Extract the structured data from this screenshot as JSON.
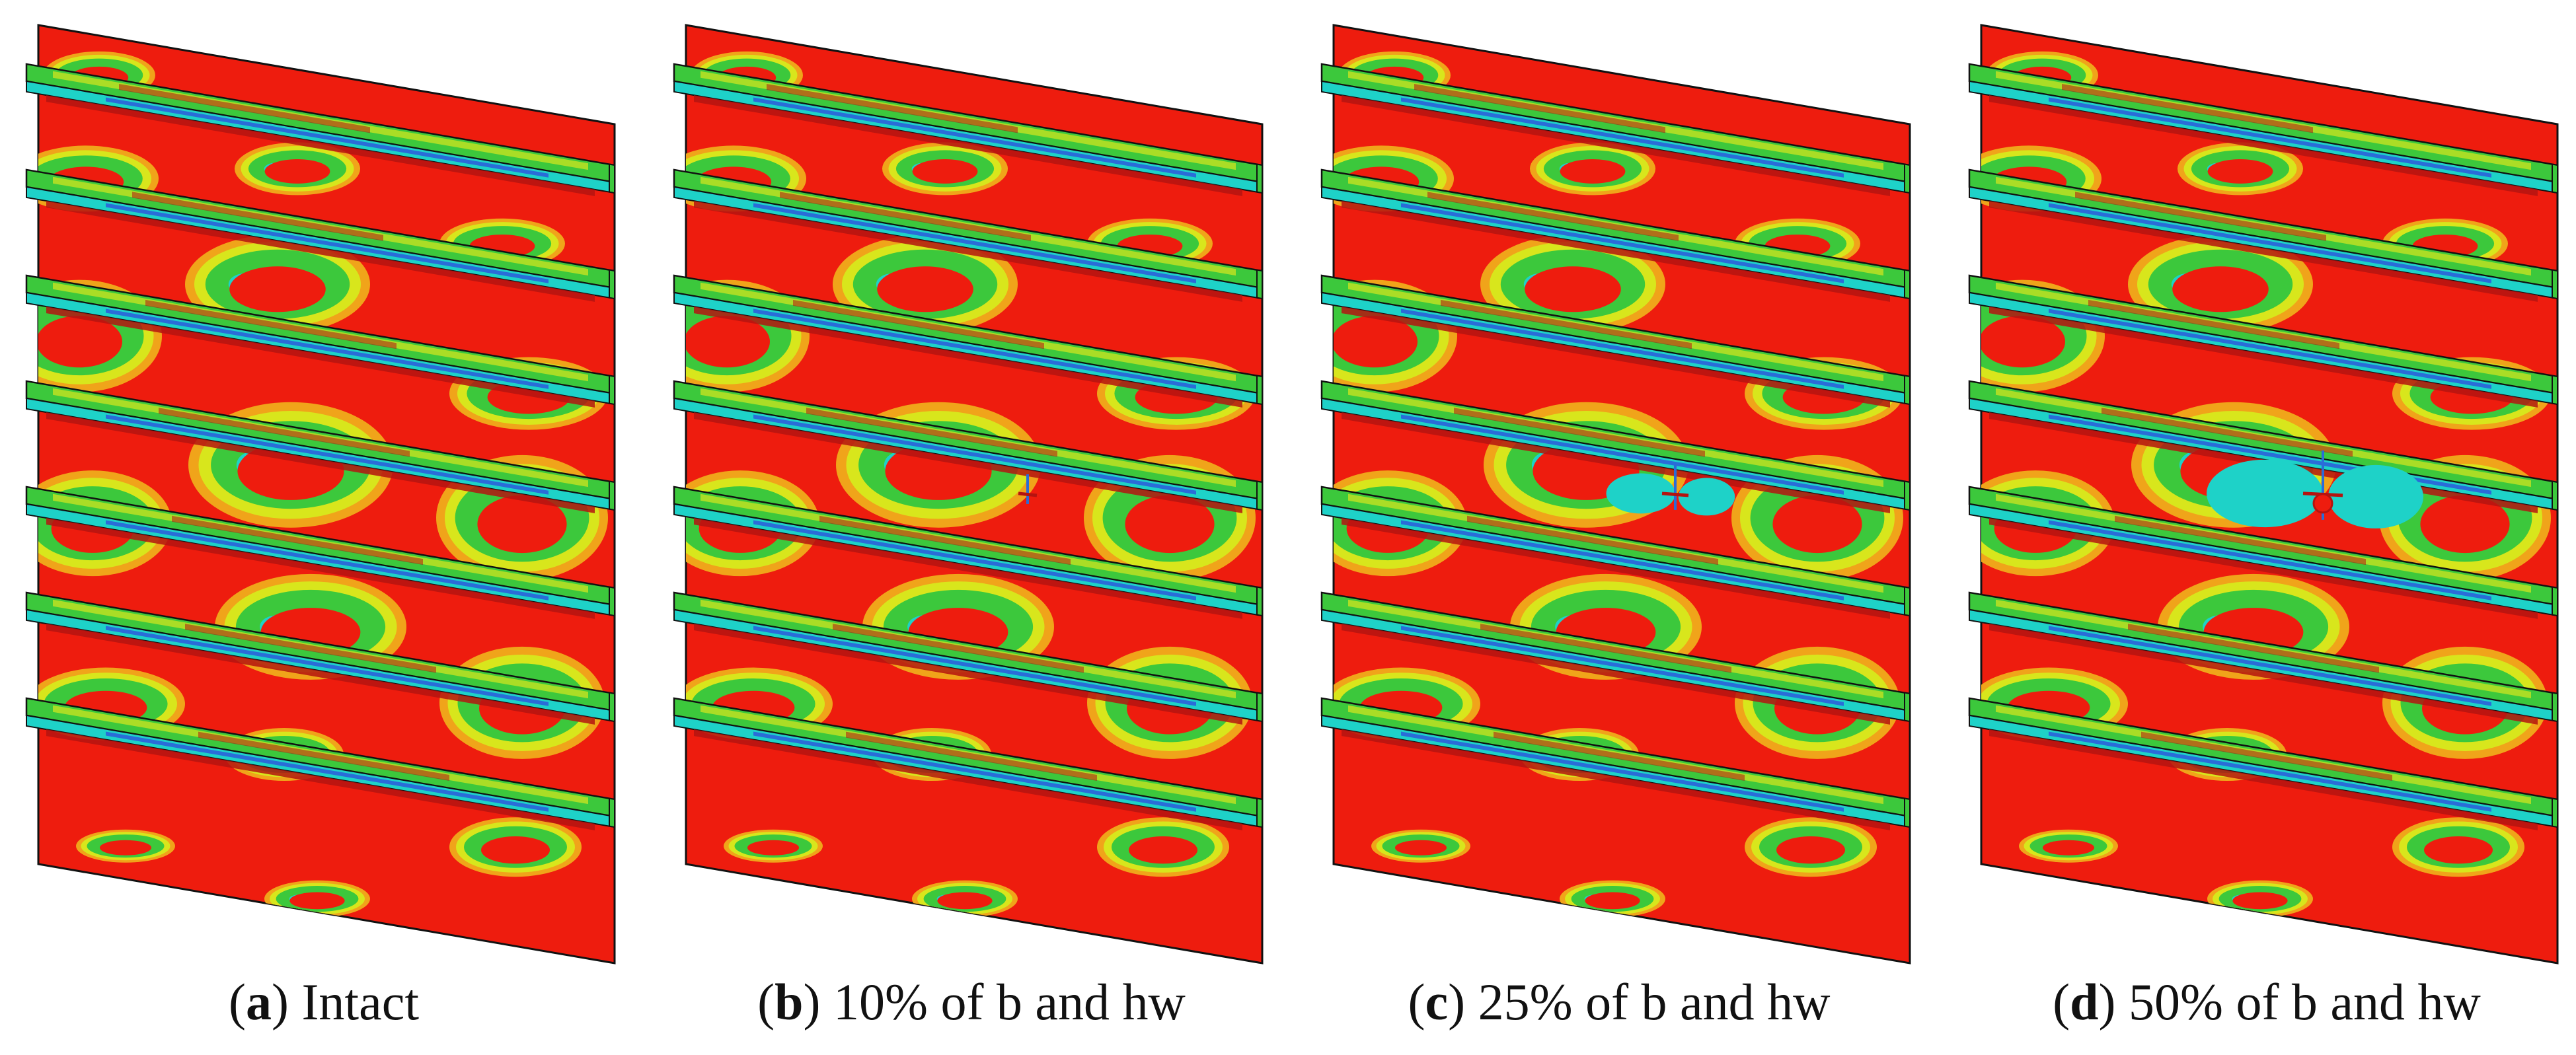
{
  "panels": [
    {
      "letter": "a",
      "label": "Intact",
      "damage": 0
    },
    {
      "letter": "b",
      "label": "10% of b and hw",
      "damage": 0.1
    },
    {
      "letter": "c",
      "label": "25% of b and hw",
      "damage": 0.25
    },
    {
      "letter": "d",
      "label": "50% of b and hw",
      "damage": 0.5
    }
  ],
  "contour_colors": {
    "high": "#ee1c0e",
    "orange": "#f0a41a",
    "yellow": "#d8e61c",
    "green": "#3cc83c",
    "cyan": "#1ed2c8",
    "blue": "#2a6cd8",
    "dark_red": "#b41410"
  }
}
